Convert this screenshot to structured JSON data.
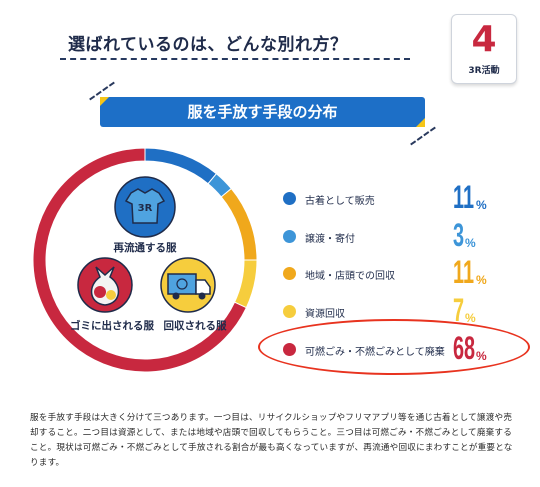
{
  "header": {
    "title": "選ばれているのは、どんな別れ方？",
    "badge_number": "4",
    "badge_label": "3R活動"
  },
  "banner": {
    "label": "服を手放す手段の分布"
  },
  "illustrations": {
    "shirt_text": "3R",
    "reuse_label": "再流通する服",
    "trash_label": "ゴミに出される服",
    "collect_label": "回収される服"
  },
  "chart_data": {
    "type": "pie",
    "title": "服を手放す手段の分布",
    "categories": [
      "古着として販売",
      "譲渡・寄付",
      "地域・店頭での回収",
      "資源回収",
      "可燃ごみ・不燃ごみとして廃棄"
    ],
    "values": [
      11,
      3,
      11,
      7,
      68
    ],
    "unit": "%",
    "colors": [
      "#1f6fc4",
      "#3d95d8",
      "#f0a81c",
      "#f6cd3d",
      "#c8283f"
    ],
    "value_colors": [
      "#1f6fc4",
      "#3d95d8",
      "#f0a81c",
      "#f6cd3d",
      "#c8283f"
    ],
    "legend_position": "right",
    "highlighted": "可燃ごみ・不燃ごみとして廃棄"
  },
  "description": "服を手放す手段は大きく分けて三つあります。一つ目は、リサイクルショップやフリマアプリ等を通じ古着として譲渡や売却すること。二つ目は資源として、または地域や店頭で回収してもらうこと。三つ目は可燃ごみ・不燃ごみとして廃棄すること。現状は可燃ごみ・不燃ごみとして手放される割合が最も高くなっていますが、再流通や回収にまわすことが重要となります。"
}
